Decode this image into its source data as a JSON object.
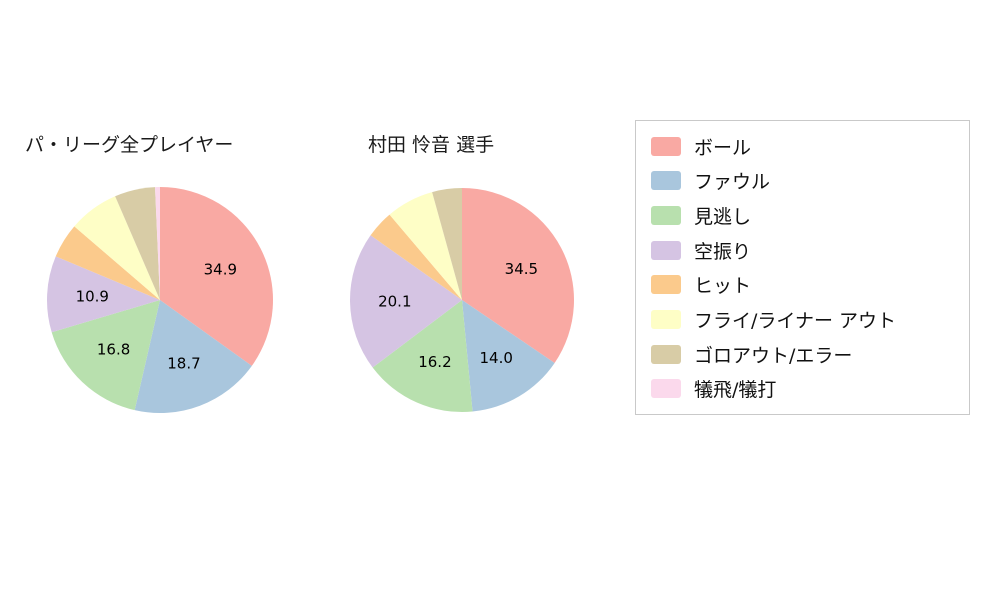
{
  "chart_data": [
    {
      "type": "pie",
      "title": "パ・リーグ全プレイヤー",
      "categories": [
        "ボール",
        "ファウル",
        "見逃し",
        "空振り",
        "ヒット",
        "フライ/ライナー アウト",
        "ゴロアウト/エラー",
        "犠飛/犠打"
      ],
      "values": [
        34.9,
        18.7,
        16.8,
        10.9,
        5.0,
        7.2,
        5.8,
        0.7
      ],
      "shown_labels": [
        "34.9",
        "18.7",
        "16.8",
        "10.9"
      ],
      "start_angle": "top",
      "direction": "clockwise",
      "label_threshold": 10
    },
    {
      "type": "pie",
      "title": "村田 怜音  選手",
      "categories": [
        "ボール",
        "ファウル",
        "見逃し",
        "空振り",
        "ヒット",
        "フライ/ライナー アウト",
        "ゴロアウト/エラー",
        "犠飛/犠打"
      ],
      "values": [
        34.5,
        14.0,
        16.2,
        20.1,
        4.0,
        6.9,
        4.3,
        0.0
      ],
      "shown_labels": [
        "34.5",
        "14.0",
        "16.2",
        "20.1"
      ],
      "start_angle": "top",
      "direction": "clockwise",
      "label_threshold": 10
    }
  ],
  "legend": {
    "position": "right",
    "items": [
      {
        "label": "ボール",
        "color": "#F9A9A3"
      },
      {
        "label": "ファウル",
        "color": "#A9C6DD"
      },
      {
        "label": "見逃し",
        "color": "#B8E0AE"
      },
      {
        "label": "空振り",
        "color": "#D5C4E3"
      },
      {
        "label": "ヒット",
        "color": "#FBCA8C"
      },
      {
        "label": "フライ/ライナー アウト",
        "color": "#FEFEC6"
      },
      {
        "label": "ゴロアウト/エラー",
        "color": "#D8CCA6"
      },
      {
        "label": "犠飛/犠打",
        "color": "#FBD9EC"
      }
    ]
  }
}
